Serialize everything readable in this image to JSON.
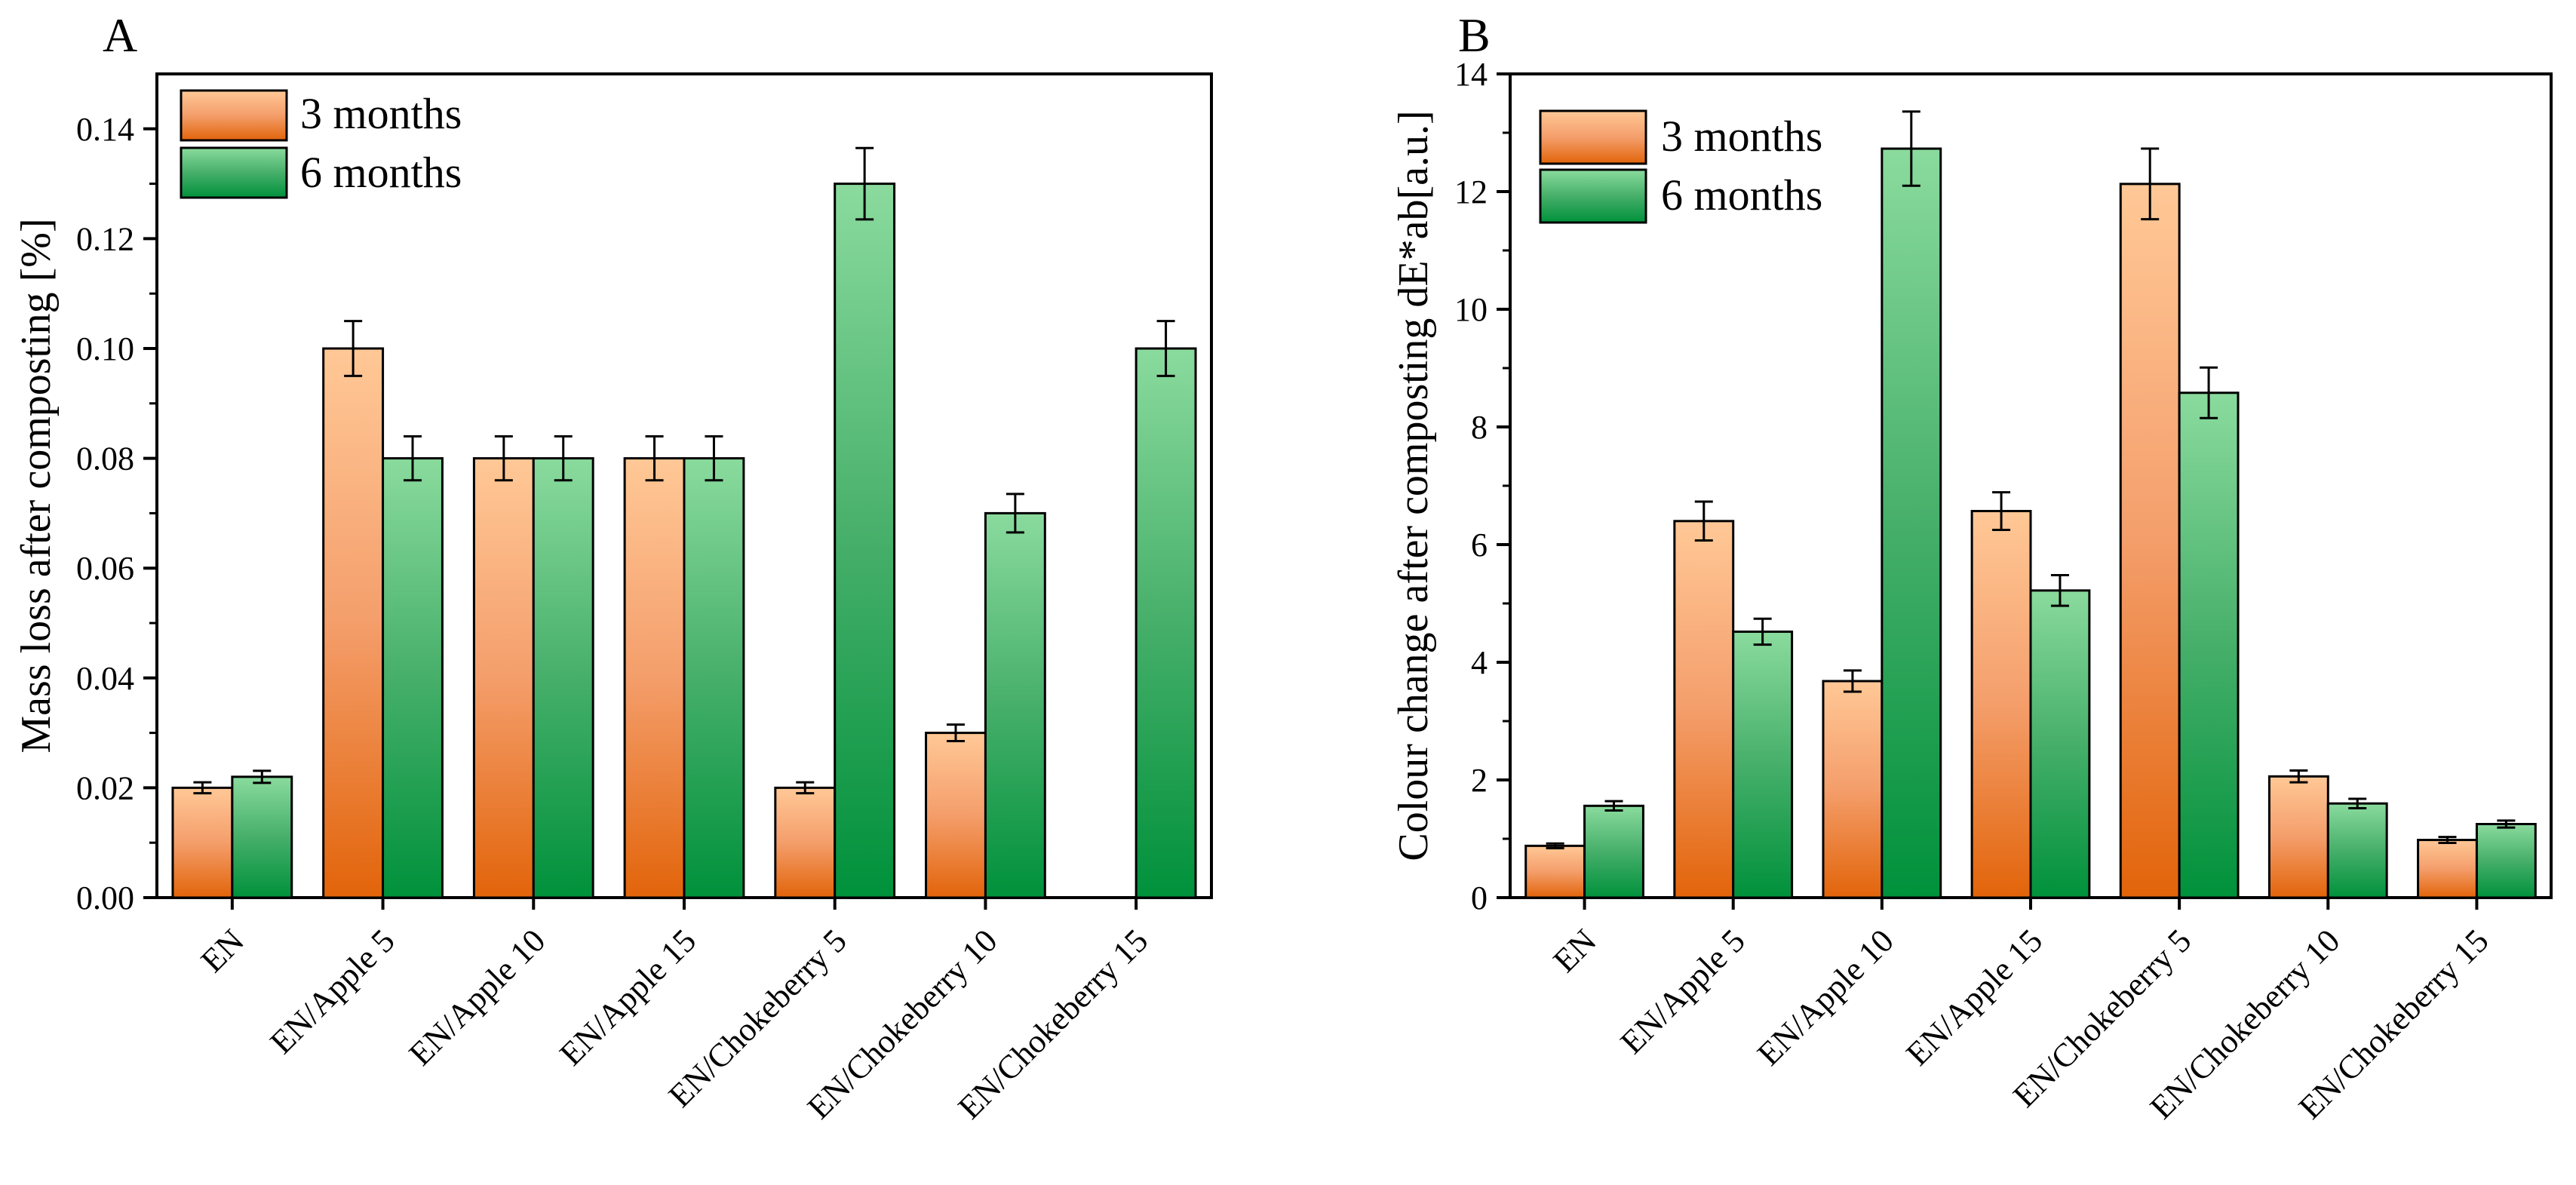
{
  "colors": {
    "m3_light": "#FFC896",
    "m3_mid": "#F49E6B",
    "m3_dark": "#E2640A",
    "m6_light": "#8ADB9D",
    "m6_mid": "#46AF6A",
    "m6_dark": "#00913B",
    "axis": "#000000"
  },
  "chart_data": [
    {
      "panel_label": "A",
      "type": "bar",
      "categories": [
        "EN",
        "EN/Apple 5",
        "EN/Apple 10",
        "EN/Apple 15",
        "EN/Chokeberry 5",
        "EN/Chokeberry 10",
        "EN/Chokeberry 15"
      ],
      "series": [
        {
          "name": "3 months",
          "values": [
            0.02,
            0.1,
            0.08,
            0.08,
            0.02,
            0.03,
            0
          ],
          "errors": [
            0.001,
            0.005,
            0.004,
            0.004,
            0.001,
            0.0015,
            0
          ]
        },
        {
          "name": "6 months",
          "values": [
            0.022,
            0.08,
            0.08,
            0.08,
            0.13,
            0.07,
            0.1
          ],
          "errors": [
            0.0011,
            0.004,
            0.004,
            0.004,
            0.0065,
            0.0035,
            0.005
          ]
        }
      ],
      "ylabel": "Mass loss after composting [%]",
      "xlabel": "",
      "ylim": [
        0,
        0.15
      ],
      "yticks": [
        "0.00",
        "0.02",
        "0.04",
        "0.06",
        "0.08",
        "0.10",
        "0.12",
        "0.14"
      ],
      "ytick_values": [
        0,
        0.02,
        0.04,
        0.06,
        0.08,
        0.1,
        0.12,
        0.14
      ],
      "legend_position": "top-left",
      "grid": false
    },
    {
      "panel_label": "B",
      "type": "bar",
      "categories": [
        "EN",
        "EN/Apple 5",
        "EN/Apple 10",
        "EN/Apple 15",
        "EN/Chokeberry 5",
        "EN/Chokeberry 10",
        "EN/Chokeberry 15"
      ],
      "series": [
        {
          "name": "3 months",
          "values": [
            0.88,
            6.4,
            3.68,
            6.57,
            12.13,
            2.06,
            0.98
          ],
          "errors": [
            0.04,
            0.33,
            0.18,
            0.32,
            0.6,
            0.1,
            0.05
          ]
        },
        {
          "name": "6 months",
          "values": [
            1.56,
            4.52,
            12.73,
            5.22,
            8.58,
            1.6,
            1.25
          ],
          "errors": [
            0.08,
            0.22,
            0.63,
            0.26,
            0.43,
            0.08,
            0.06
          ]
        }
      ],
      "ylabel": "Colour change after composting dE*ab[a.u.]",
      "xlabel": "",
      "ylim": [
        0,
        14
      ],
      "yticks": [
        "0",
        "2",
        "4",
        "6",
        "8",
        "10",
        "12",
        "14"
      ],
      "ytick_values": [
        0,
        2,
        4,
        6,
        8,
        10,
        12,
        14
      ],
      "legend_position": "top-left",
      "grid": false
    }
  ]
}
